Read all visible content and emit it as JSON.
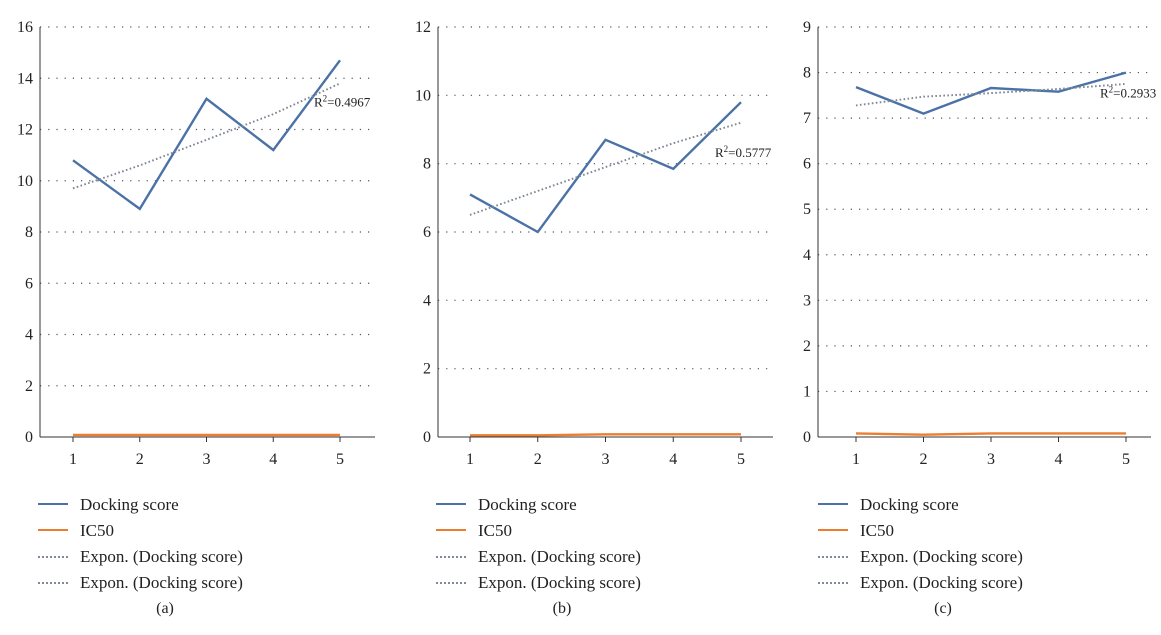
{
  "chart_data": [
    {
      "type": "line",
      "caption": "(a)",
      "x": [
        1,
        2,
        3,
        4,
        5
      ],
      "ylim": [
        0,
        16
      ],
      "yticks": [
        0,
        2,
        4,
        6,
        8,
        10,
        12,
        14,
        16
      ],
      "grid": "horizontal-dotted",
      "legend_placement": "bottom",
      "series": [
        {
          "name": "Docking score",
          "values": [
            10.8,
            8.9,
            13.2,
            11.2,
            14.7
          ],
          "color": "#4a72a6",
          "style": "solid"
        },
        {
          "name": "IC50",
          "values": [
            0.08,
            0.08,
            0.08,
            0.08,
            0.08
          ],
          "color": "#ed7d31",
          "style": "solid"
        },
        {
          "name": "Expon. (Docking score)",
          "values": [
            9.7,
            10.6,
            11.6,
            12.6,
            13.8
          ],
          "color": "#808a96",
          "style": "dotted"
        },
        {
          "name": "Expon. (Docking score)",
          "values": [
            9.7,
            10.6,
            11.6,
            12.6,
            13.8
          ],
          "color": "#808a96",
          "style": "dotted"
        }
      ],
      "annotation": {
        "sup": "2",
        "value": "=0.4967",
        "at_x": 5,
        "at_y": 12.9
      }
    },
    {
      "type": "line",
      "caption": "(b)",
      "x": [
        1,
        2,
        3,
        4,
        5
      ],
      "ylim": [
        0,
        12
      ],
      "yticks": [
        0,
        2,
        4,
        6,
        8,
        10,
        12
      ],
      "grid": "horizontal-dotted",
      "legend_placement": "bottom",
      "series": [
        {
          "name": "Docking score",
          "values": [
            7.1,
            6.0,
            8.7,
            7.85,
            9.8
          ],
          "color": "#4a72a6",
          "style": "solid"
        },
        {
          "name": "IC50",
          "values": [
            0.05,
            0.05,
            0.08,
            0.08,
            0.08
          ],
          "color": "#ed7d31",
          "style": "solid"
        },
        {
          "name": "Expon. (Docking score)",
          "values": [
            6.5,
            7.2,
            7.9,
            8.6,
            9.2
          ],
          "color": "#808a96",
          "style": "dotted"
        },
        {
          "name": "Expon. (Docking score)",
          "values": [
            6.5,
            7.2,
            7.9,
            8.6,
            9.2
          ],
          "color": "#808a96",
          "style": "dotted"
        }
      ],
      "annotation": {
        "sup": "2",
        "value": "=0.5777",
        "at_x": 5,
        "at_y": 8.2
      }
    },
    {
      "type": "line",
      "caption": "(c)",
      "x": [
        1,
        2,
        3,
        4,
        5
      ],
      "ylim": [
        0,
        9
      ],
      "yticks": [
        0,
        1,
        2,
        3,
        4,
        5,
        6,
        7,
        8,
        9
      ],
      "grid": "horizontal-dotted",
      "legend_placement": "bottom",
      "series": [
        {
          "name": "Docking score",
          "values": [
            7.68,
            7.1,
            7.66,
            7.58,
            8.0
          ],
          "color": "#4a72a6",
          "style": "solid"
        },
        {
          "name": "IC50",
          "values": [
            0.08,
            0.05,
            0.08,
            0.08,
            0.08
          ],
          "color": "#ed7d31",
          "style": "solid"
        },
        {
          "name": "Expon. (Docking score)",
          "values": [
            7.28,
            7.47,
            7.55,
            7.64,
            7.75
          ],
          "color": "#808a96",
          "style": "dotted"
        },
        {
          "name": "Expon. (Docking score)",
          "values": [
            7.28,
            7.47,
            7.55,
            7.64,
            7.75
          ],
          "color": "#808a96",
          "style": "dotted"
        }
      ],
      "annotation": {
        "sup": "2",
        "value": "=0.2933",
        "at_x": 5,
        "at_y": 7.45
      }
    }
  ]
}
